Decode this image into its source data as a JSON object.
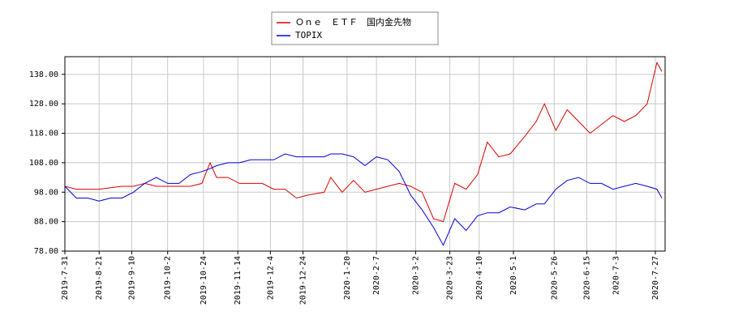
{
  "chart_data": {
    "type": "line",
    "x": [
      "2019-7-31",
      "2019-8-7",
      "2019-8-14",
      "2019-8-21",
      "2019-8-28",
      "2019-9-4",
      "2019-9-11",
      "2019-9-18",
      "2019-9-25",
      "2019-10-2",
      "2019-10-9",
      "2019-10-16",
      "2019-10-23",
      "2019-10-28",
      "2019-11-1",
      "2019-11-8",
      "2019-11-15",
      "2019-11-22",
      "2019-11-29",
      "2019-12-6",
      "2019-12-13",
      "2019-12-20",
      "2019-12-27",
      "2020-1-6",
      "2020-1-10",
      "2020-1-17",
      "2020-1-24",
      "2020-1-31",
      "2020-2-7",
      "2020-2-14",
      "2020-2-21",
      "2020-2-28",
      "2020-3-6",
      "2020-3-13",
      "2020-3-19",
      "2020-3-26",
      "2020-4-2",
      "2020-4-9",
      "2020-4-15",
      "2020-4-22",
      "2020-4-29",
      "2020-5-8",
      "2020-5-15",
      "2020-5-20",
      "2020-5-27",
      "2020-6-3",
      "2020-6-10",
      "2020-6-17",
      "2020-6-24",
      "2020-7-1",
      "2020-7-8",
      "2020-7-15",
      "2020-7-22",
      "2020-7-28",
      "2020-7-31"
    ],
    "series": [
      {
        "name": "Ｏｎｅ　ＥＴＦ　国内金先物",
        "color": "#dd0000",
        "values": [
          100,
          99,
          99,
          99,
          99.5,
          100,
          100,
          101,
          100,
          100,
          100,
          100,
          101,
          108,
          103,
          103,
          101,
          101,
          101,
          99,
          99,
          96,
          97,
          98,
          103,
          98,
          102,
          98,
          99,
          100,
          101,
          100,
          98,
          89,
          88,
          101,
          99,
          104,
          115,
          110,
          111,
          117,
          122,
          128,
          119,
          126,
          122,
          118,
          121,
          124,
          122,
          124,
          128,
          142,
          139
        ]
      },
      {
        "name": "TOPIX",
        "color": "#0000dd",
        "values": [
          100,
          96,
          96,
          95,
          96,
          96,
          98,
          101,
          103,
          101,
          101,
          104,
          105,
          106,
          107,
          108,
          108,
          109,
          109,
          109,
          111,
          110,
          110,
          110,
          111,
          111,
          110,
          107,
          110,
          109,
          105,
          97,
          92,
          86,
          80,
          89,
          85,
          90,
          91,
          91,
          93,
          92,
          94,
          94,
          99,
          102,
          103,
          101,
          101,
          99,
          100,
          101,
          100,
          99,
          96
        ]
      }
    ],
    "xlim": [
      "2019-7-31",
      "2020-8-2"
    ],
    "xticks": [
      "2019-7-31",
      "2019-8-21",
      "2019-9-10",
      "2019-10-2",
      "2019-10-24",
      "2019-11-14",
      "2019-12-4",
      "2019-12-24",
      "2020-1-20",
      "2020-2-7",
      "2020-3-2",
      "2020-3-23",
      "2020-4-10",
      "2020-5-1",
      "2020-5-26",
      "2020-6-15",
      "2020-7-3",
      "2020-7-27"
    ],
    "ylim": [
      78,
      144
    ],
    "yticks": [
      {
        "value": 78,
        "label": "78.00"
      },
      {
        "value": 88,
        "label": "88.00"
      },
      {
        "value": 98,
        "label": "98.00"
      },
      {
        "value": 108,
        "label": "108.00"
      },
      {
        "value": 118,
        "label": "118.00"
      },
      {
        "value": 128,
        "label": "128.00"
      },
      {
        "value": 138,
        "label": "138.00"
      }
    ],
    "grid": true
  }
}
